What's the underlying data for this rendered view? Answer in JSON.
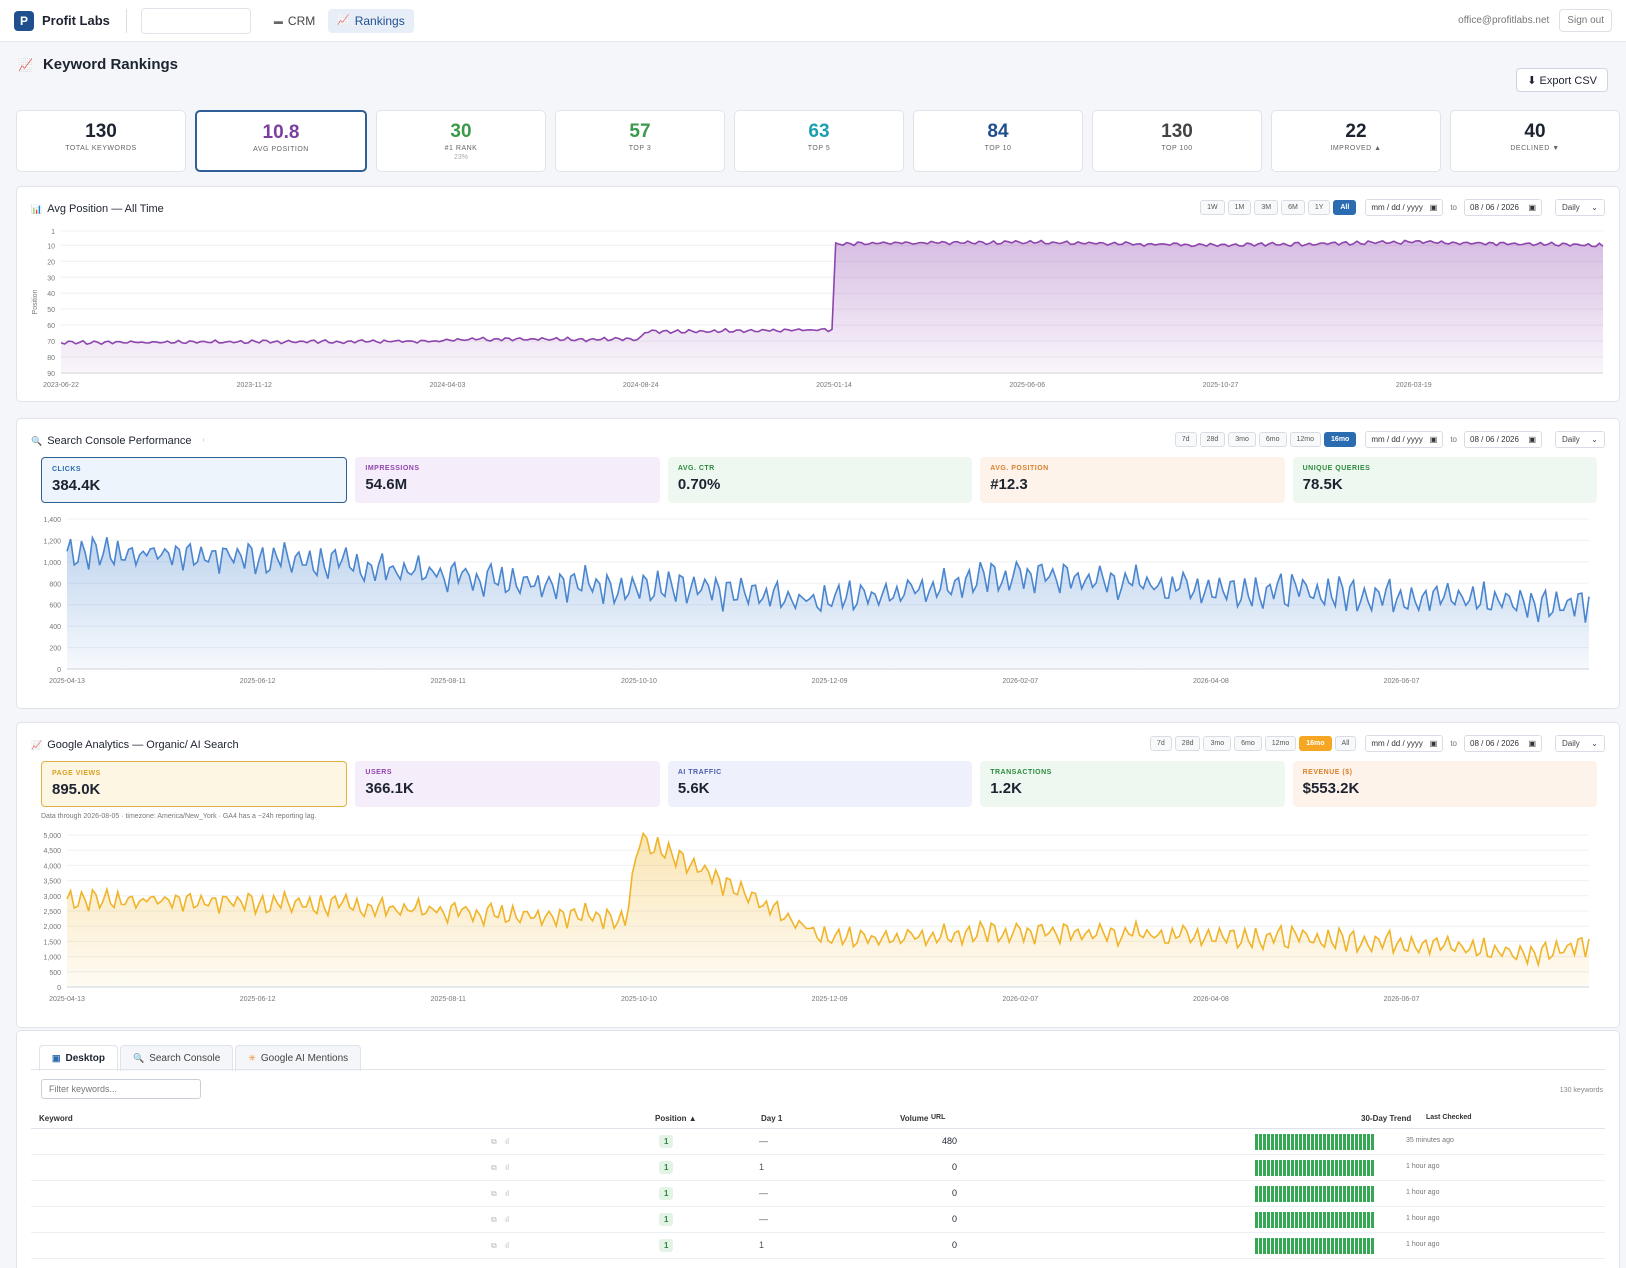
{
  "app": {
    "brand_initial": "P",
    "brand": "Profit Labs",
    "nav": [
      {
        "label": "CRM",
        "icon": "car-icon"
      },
      {
        "label": "Rankings",
        "icon": "chart-icon"
      }
    ],
    "user_email": "office@profitlabs.net",
    "signout_label": "Sign out"
  },
  "page": {
    "title": "Keyword Rankings",
    "export_label": "⬇ Export CSV"
  },
  "kpis": [
    {
      "value": "130",
      "label": "TOTAL KEYWORDS",
      "color": "#1d2330"
    },
    {
      "value": "10.8",
      "label": "AVG POSITION",
      "color": "#7b3fa0"
    },
    {
      "value": "30",
      "label": "#1 RANK",
      "sub": "23%",
      "color": "#3a9a4a"
    },
    {
      "value": "57",
      "label": "TOP 3",
      "color": "#3a9a4a"
    },
    {
      "value": "63",
      "label": "TOP 5",
      "color": "#1aa0b0"
    },
    {
      "value": "84",
      "label": "TOP 10",
      "color": "#1f4f8f"
    },
    {
      "value": "130",
      "label": "TOP 100",
      "color": "#444444"
    },
    {
      "value": "22",
      "label": "IMPROVED ▲",
      "color": "#1d2330"
    },
    {
      "value": "40",
      "label": "DECLINED ▼",
      "color": "#1d2330"
    }
  ],
  "avg_panel": {
    "title": "Avg Position — All Time",
    "ranges": [
      "1W",
      "1M",
      "3M",
      "6M",
      "1Y",
      "All"
    ],
    "active_range": "All",
    "date_from": "mm / dd / yyyy",
    "to_label": "to",
    "date_to": "08 / 06 / 2026",
    "granularity": "Daily",
    "chart_data": {
      "type": "area",
      "ylabel": "Position",
      "y_ticks": [
        "1",
        "10",
        "20",
        "30",
        "40",
        "50",
        "60",
        "70",
        "80",
        "90"
      ],
      "x_ticks": [
        "2023-06-22",
        "2023-11-12",
        "2024-04-03",
        "2024-08-24",
        "2025-01-14",
        "2025-06-06",
        "2025-10-27",
        "2026-03-19"
      ],
      "ylim": [
        90,
        1
      ],
      "series": [
        {
          "x": [
            "2023-06-22",
            "2024-04-03",
            "2024-04-04",
            "2024-08-24",
            "2024-08-25",
            "2025-01-14",
            "2025-01-15",
            "2025-06-06",
            "2025-10-27",
            "2026-03-19",
            "2026-08-06"
          ],
          "values": [
            71,
            70,
            69,
            69,
            64,
            63,
            9,
            8,
            10,
            8,
            10
          ]
        }
      ],
      "color": "#8e44ad"
    }
  },
  "gsc_panel": {
    "title": "Search Console Performance",
    "ranges": [
      "7d",
      "28d",
      "3mo",
      "6mo",
      "12mo",
      "16mo"
    ],
    "active_range": "16mo",
    "date_from": "mm / dd / yyyy",
    "to_label": "to",
    "date_to": "08 / 06 / 2026",
    "granularity": "Daily",
    "metrics": [
      {
        "label": "CLICKS",
        "value": "384.4K",
        "bg": "#eef4fb",
        "fg": "#2b6cb0",
        "border": "#2f5f96"
      },
      {
        "label": "IMPRESSIONS",
        "value": "54.6M",
        "bg": "#f5eefa",
        "fg": "#8e44ad"
      },
      {
        "label": "AVG. CTR",
        "value": "0.70%",
        "bg": "#eef8f0",
        "fg": "#2c8a3c"
      },
      {
        "label": "AVG. POSITION",
        "value": "#12.3",
        "bg": "#fdf3ea",
        "fg": "#d9822b"
      },
      {
        "label": "UNIQUE QUERIES",
        "value": "78.5K",
        "bg": "#eef8f0",
        "fg": "#2c8a3c"
      }
    ],
    "chart_data": {
      "type": "area",
      "y_ticks": [
        "1,400",
        "1,200",
        "1,000",
        "800",
        "600",
        "400",
        "200",
        "0"
      ],
      "x_ticks": [
        "2025-04-13",
        "2025-06-12",
        "2025-08-11",
        "2025-10-10",
        "2025-12-09",
        "2026-02-07",
        "2026-04-08",
        "2026-06-07"
      ],
      "ylim": [
        0,
        1400
      ],
      "series": [
        {
          "x": [
            "2025-04-13",
            "2025-06-12",
            "2025-08-11",
            "2025-10-10",
            "2025-12-09",
            "2026-02-07",
            "2026-04-08",
            "2026-06-07",
            "2026-08-05"
          ],
          "values": [
            1100,
            1050,
            880,
            760,
            650,
            880,
            750,
            690,
            600
          ]
        }
      ],
      "color": "#4a86cf"
    }
  },
  "ga_panel": {
    "title": "Google Analytics — Organic/ AI Search",
    "ranges": [
      "7d",
      "28d",
      "3mo",
      "6mo",
      "12mo",
      "16mo",
      "All"
    ],
    "active_range": "16mo",
    "date_from": "mm / dd / yyyy",
    "to_label": "to",
    "date_to": "08 / 06 / 2026",
    "granularity": "Daily",
    "metrics": [
      {
        "label": "PAGE VIEWS",
        "value": "895.0K",
        "bg": "#fdf6e3",
        "fg": "#d9a020",
        "border": "#e0b040"
      },
      {
        "label": "USERS",
        "value": "366.1K",
        "bg": "#f5eefa",
        "fg": "#8e44ad"
      },
      {
        "label": "AI TRAFFIC",
        "value": "5.6K",
        "bg": "#eef1fb",
        "fg": "#4a5fb0"
      },
      {
        "label": "TRANSACTIONS",
        "value": "1.2K",
        "bg": "#eef8f0",
        "fg": "#2c8a3c"
      },
      {
        "label": "REVENUE ($)",
        "value": "$553.2K",
        "bg": "#fdf3ea",
        "fg": "#d9822b"
      }
    ],
    "note": "Data through 2026-08-05 · timezone: America/New_York · GA4 has a ~24h reporting lag.",
    "chart_data": {
      "type": "area",
      "y_ticks": [
        "5,000",
        "4,500",
        "4,000",
        "3,500",
        "3,000",
        "2,500",
        "2,000",
        "1,500",
        "1,000",
        "500",
        "0"
      ],
      "x_ticks": [
        "2025-04-13",
        "2025-06-12",
        "2025-08-11",
        "2025-10-10",
        "2025-12-09",
        "2026-02-07",
        "2026-04-08",
        "2026-06-07"
      ],
      "ylim": [
        0,
        5000
      ],
      "series": [
        {
          "x": [
            "2025-04-13",
            "2025-06-12",
            "2025-08-11",
            "2025-10-06",
            "2025-10-10",
            "2025-12-09",
            "2026-02-07",
            "2026-04-08",
            "2026-06-07",
            "2026-07-15",
            "2026-08-05"
          ],
          "values": [
            2900,
            2800,
            2500,
            2300,
            4850,
            1600,
            1800,
            1700,
            1500,
            1100,
            1400
          ]
        }
      ],
      "color": "#f0b429"
    }
  },
  "table": {
    "tabs": [
      {
        "label": "Desktop",
        "icon": "desktop-icon"
      },
      {
        "label": "Search Console",
        "icon": "search-icon"
      },
      {
        "label": "Google AI Mentions",
        "icon": "sparkle-icon"
      }
    ],
    "filter_placeholder": "Filter keywords...",
    "count": "130 keywords",
    "columns": {
      "keyword": "Keyword",
      "position": "Position ▲",
      "day1": "Day 1",
      "volume": "Volume",
      "url": "URL",
      "trend": "30-Day Trend",
      "last_checked": "Last Checked"
    },
    "rows": [
      {
        "position": "1",
        "day1": "—",
        "volume": "480",
        "last_checked": "35 minutes ago"
      },
      {
        "position": "1",
        "day1": "1",
        "volume": "0",
        "last_checked": "1 hour ago"
      },
      {
        "position": "1",
        "day1": "—",
        "volume": "0",
        "last_checked": "1 hour ago"
      },
      {
        "position": "1",
        "day1": "—",
        "volume": "0",
        "last_checked": "1 hour ago"
      },
      {
        "position": "1",
        "day1": "1",
        "volume": "0",
        "last_checked": "1 hour ago"
      }
    ]
  }
}
